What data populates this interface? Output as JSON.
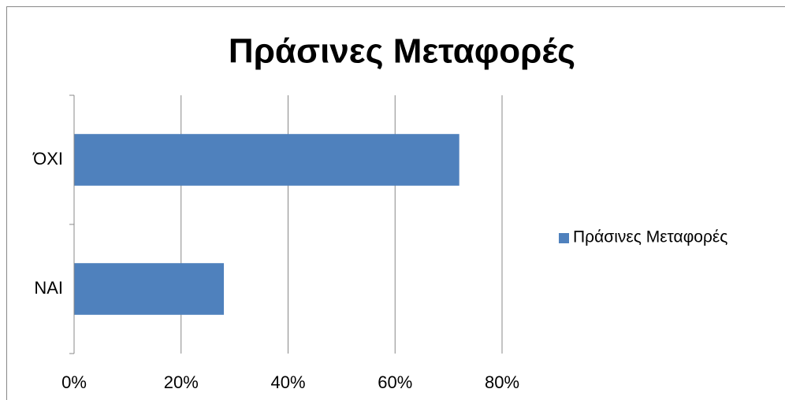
{
  "chart_data": {
    "type": "bar",
    "orientation": "horizontal",
    "title": "Πράσινες Μεταφορές",
    "categories": [
      "ΝΑΙ",
      "ΌΧΙ"
    ],
    "series": [
      {
        "name": "Πράσινες Μεταφορές",
        "color": "#4f81bd",
        "values": [
          28,
          72
        ]
      }
    ],
    "xlim": [
      0,
      80
    ],
    "xticks": [
      {
        "value": 0,
        "label": "0%"
      },
      {
        "value": 20,
        "label": "20%"
      },
      {
        "value": 40,
        "label": "40%"
      },
      {
        "value": 60,
        "label": "60%"
      },
      {
        "value": 80,
        "label": "80%"
      }
    ],
    "grid": true,
    "legend": "right"
  }
}
